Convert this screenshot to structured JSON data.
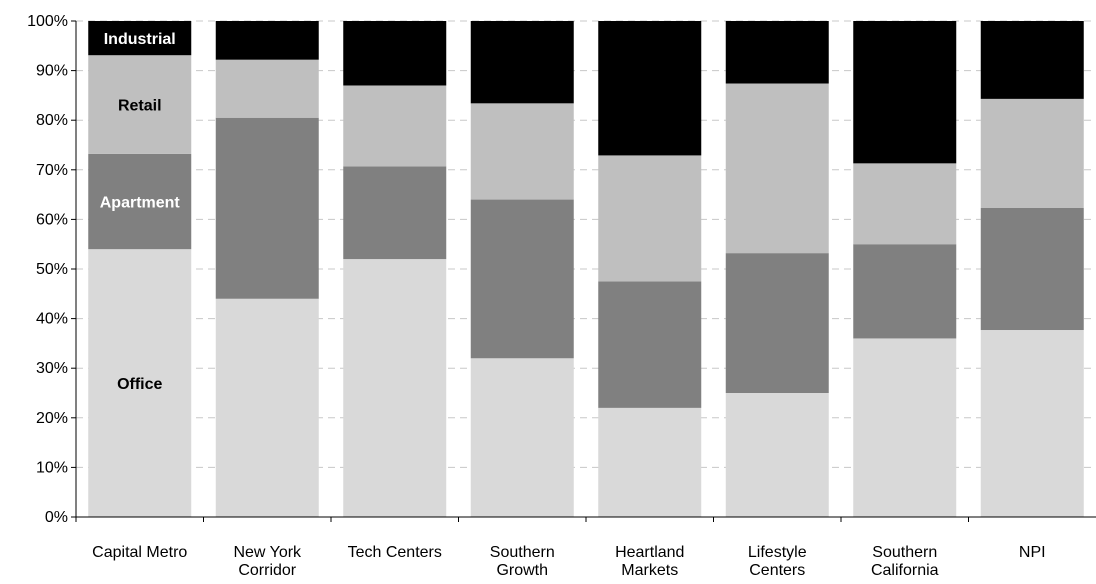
{
  "chart_data": {
    "type": "bar",
    "stacked": true,
    "percent": true,
    "categories": [
      [
        "Capital Metro"
      ],
      [
        "New York",
        "Corridor"
      ],
      [
        "Tech Centers"
      ],
      [
        "Southern",
        "Growth"
      ],
      [
        "Heartland",
        "Markets"
      ],
      [
        "Lifestyle",
        "Centers"
      ],
      [
        "Southern",
        "California"
      ],
      [
        "NPI"
      ]
    ],
    "series": [
      {
        "name": "Office",
        "color": "#d9d9d9",
        "label_color": "#000000",
        "values": [
          54,
          44,
          52,
          32,
          22,
          25,
          36,
          37.7
        ]
      },
      {
        "name": "Apartment",
        "color": "#808080",
        "label_color": "#ffffff",
        "values": [
          19.2,
          36.5,
          18.7,
          32,
          25.5,
          28.2,
          19,
          24.6
        ]
      },
      {
        "name": "Retail",
        "color": "#bfbfbf",
        "label_color": "#000000",
        "values": [
          19.9,
          11.7,
          16.3,
          19.4,
          25.4,
          34.2,
          16.3,
          22
        ]
      },
      {
        "name": "Industrial",
        "color": "#000000",
        "label_color": "#ffffff",
        "values": [
          6.9,
          7.8,
          13,
          16.6,
          27.1,
          12.6,
          28.7,
          15.7
        ]
      }
    ],
    "series_labels_on_category": 0,
    "yticks": [
      "0%",
      "10%",
      "20%",
      "30%",
      "40%",
      "50%",
      "60%",
      "70%",
      "80%",
      "90%",
      "100%"
    ],
    "ylim": [
      0,
      100
    ],
    "grid": "dashed horizontal",
    "legend": "none (series labelled inside first bar)",
    "title": "",
    "xlabel": "",
    "ylabel": ""
  }
}
